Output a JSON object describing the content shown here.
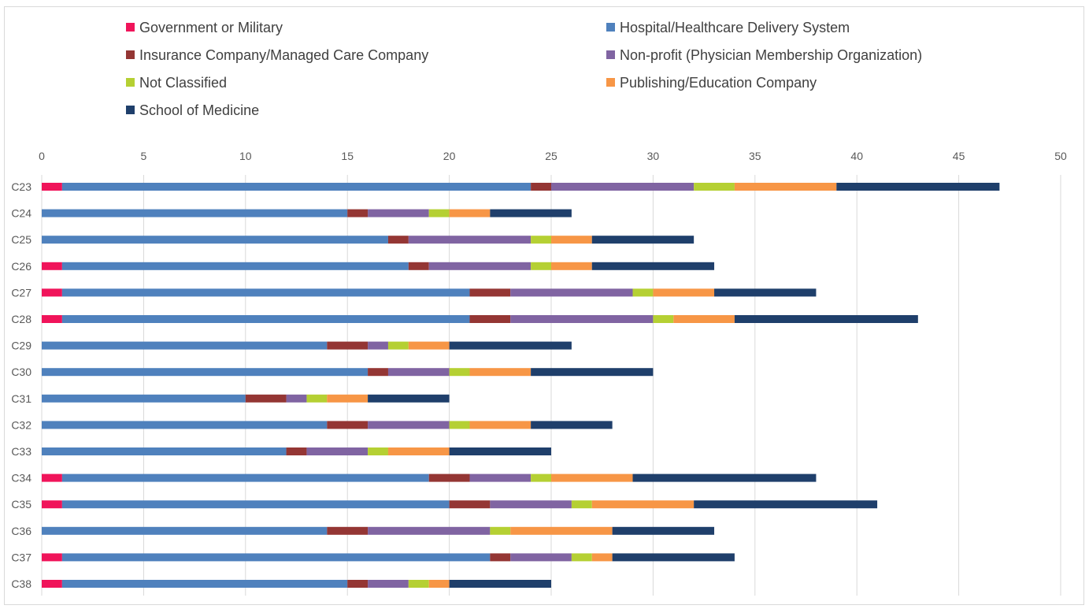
{
  "chart_data": {
    "type": "bar",
    "orientation": "horizontal",
    "stacked": true,
    "title": "",
    "xlabel": "",
    "ylabel": "",
    "xlim": [
      0,
      50
    ],
    "x_ticks": [
      0,
      5,
      10,
      15,
      20,
      25,
      30,
      35,
      40,
      45,
      50
    ],
    "grid": true,
    "legend_position": "top",
    "categories": [
      "C23",
      "C24",
      "C25",
      "C26",
      "C27",
      "C28",
      "C29",
      "C30",
      "C31",
      "C32",
      "C33",
      "C34",
      "C35",
      "C36",
      "C37",
      "C38"
    ],
    "series": [
      {
        "name": "Government or Military",
        "color": "#f0145a",
        "values": [
          1,
          0,
          0,
          1,
          1,
          1,
          0,
          0,
          0,
          0,
          0,
          1,
          1,
          0,
          1,
          1
        ]
      },
      {
        "name": "Hospital/Healthcare Delivery System",
        "color": "#4f81bd",
        "values": [
          23,
          15,
          17,
          17,
          20,
          20,
          14,
          16,
          10,
          14,
          12,
          18,
          19,
          14,
          21,
          14
        ]
      },
      {
        "name": "Insurance Company/Managed Care Company",
        "color": "#943634",
        "values": [
          1,
          1,
          1,
          1,
          2,
          2,
          2,
          1,
          2,
          2,
          1,
          2,
          2,
          2,
          1,
          1
        ]
      },
      {
        "name": "Non-profit (Physician Membership Organization)",
        "color": "#8064a2",
        "values": [
          7,
          3,
          6,
          5,
          6,
          7,
          1,
          3,
          1,
          4,
          3,
          3,
          4,
          6,
          3,
          2
        ]
      },
      {
        "name": "Not Classified",
        "color": "#b5d033",
        "values": [
          2,
          1,
          1,
          1,
          1,
          1,
          1,
          1,
          1,
          1,
          1,
          1,
          1,
          1,
          1,
          1
        ]
      },
      {
        "name": "Publishing/Education Company",
        "color": "#f79646",
        "values": [
          5,
          2,
          2,
          2,
          3,
          3,
          2,
          3,
          2,
          3,
          3,
          4,
          5,
          5,
          1,
          1
        ]
      },
      {
        "name": "School of Medicine",
        "color": "#1f3f6b",
        "values": [
          8,
          4,
          5,
          6,
          5,
          9,
          6,
          6,
          4,
          4,
          5,
          9,
          9,
          5,
          6,
          5
        ]
      }
    ]
  }
}
